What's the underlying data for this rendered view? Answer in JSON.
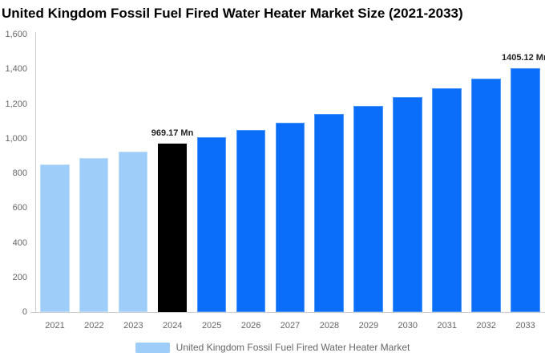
{
  "title": "United Kingdom Fossil Fuel Fired Water Heater Market Size (2021-2033)",
  "legend": {
    "label": "United Kingdom Fossil Fuel Fired Water Heater Market",
    "swatch_color": "#9FCDF9"
  },
  "colors": {
    "historical_fill": "#9FCDF9",
    "historical_border": "#BCDDFB",
    "base_fill": "#000000",
    "base_border": "#000000",
    "forecast_fill": "#0A6EFA",
    "forecast_border": "#4D97FC",
    "axis_line": "#CCCCCC",
    "tick_text": "#666666",
    "annotation_text": "#222222",
    "title_text": "#000000",
    "background": "#FFFFFF"
  },
  "chart_data": {
    "type": "bar",
    "title": "United Kingdom Fossil Fuel Fired Water Heater Market Size (2021-2033)",
    "xlabel": "",
    "ylabel": "",
    "categories": [
      "2021",
      "2022",
      "2023",
      "2024",
      "2025",
      "2026",
      "2027",
      "2028",
      "2029",
      "2030",
      "2031",
      "2032",
      "2033"
    ],
    "values": [
      850,
      890,
      925,
      969.17,
      1006,
      1050,
      1093,
      1141,
      1189,
      1240,
      1290,
      1345,
      1405.12
    ],
    "bar_roles": [
      "historical",
      "historical",
      "historical",
      "base",
      "forecast",
      "forecast",
      "forecast",
      "forecast",
      "forecast",
      "forecast",
      "forecast",
      "forecast",
      "forecast"
    ],
    "annotations": [
      {
        "index": 3,
        "text": "969.17 Mn"
      },
      {
        "index": 12,
        "text": "1405.12 Mn"
      }
    ],
    "ylim": [
      0,
      1600
    ],
    "ytick_values": [
      0,
      200,
      400,
      600,
      800,
      1000,
      1200,
      1400,
      1600
    ],
    "ytick_labels": [
      "0",
      "200",
      "400",
      "600",
      "800",
      "1,000",
      "1,200",
      "1,400",
      "1,600"
    ],
    "grid": false,
    "legend_position": "bottom",
    "unit": "Mn"
  }
}
